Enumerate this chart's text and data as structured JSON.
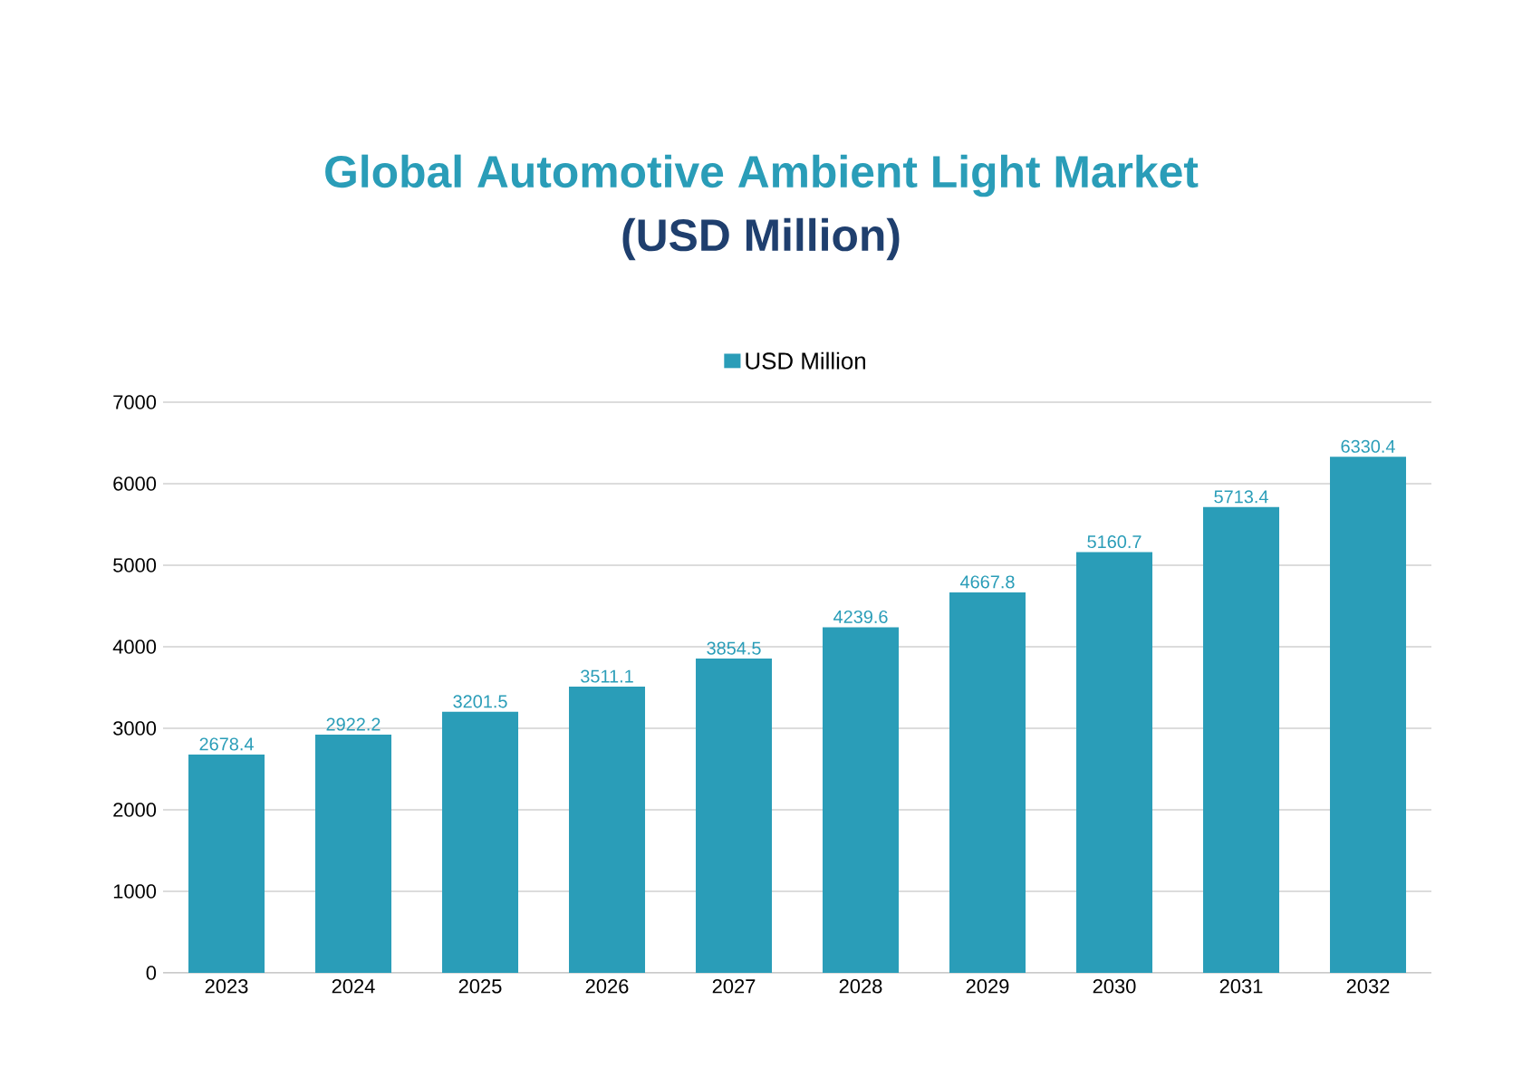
{
  "chart_data": {
    "type": "bar",
    "title": "Global Automotive Ambient Light Market",
    "subtitle": "(USD Million)",
    "categories": [
      "2023",
      "2024",
      "2025",
      "2026",
      "2027",
      "2028",
      "2029",
      "2030",
      "2031",
      "2032"
    ],
    "series": [
      {
        "name": "USD Million",
        "color": "#2a9db8",
        "values": [
          2678.4,
          2922.2,
          3201.5,
          3511.1,
          3854.5,
          4239.6,
          4667.8,
          5160.7,
          5713.4,
          6330.4
        ]
      }
    ],
    "ylim": [
      0,
      7000
    ],
    "yticks": [
      0,
      1000,
      2000,
      3000,
      4000,
      5000,
      6000,
      7000
    ],
    "grid": "y",
    "legend": "top",
    "data_labels": true
  }
}
